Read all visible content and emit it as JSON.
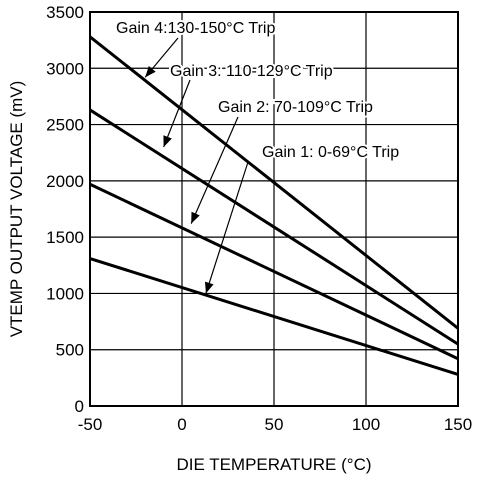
{
  "chart_data": {
    "type": "line",
    "title": "",
    "xlabel": "DIE TEMPERATURE (°C)",
    "ylabel": "VTEMP OUTPUT VOLTAGE (mV)",
    "xlim": [
      -50,
      150
    ],
    "ylim": [
      0,
      3500
    ],
    "x_ticks": [
      -50,
      0,
      50,
      100,
      150
    ],
    "y_ticks": [
      0,
      500,
      1000,
      1500,
      2000,
      2500,
      3000,
      3500
    ],
    "grid": true,
    "series": [
      {
        "name": "Gain 1: 0-69°C Trip",
        "x": [
          -50,
          150
        ],
        "y": [
          1310,
          280
        ]
      },
      {
        "name": "Gain 2: 70-109°C Trip",
        "x": [
          -50,
          150
        ],
        "y": [
          1970,
          420
        ]
      },
      {
        "name": "Gain 3: 110-129°C Trip",
        "x": [
          -50,
          150
        ],
        "y": [
          2630,
          550
        ]
      },
      {
        "name": "Gain 4:130-150°C Trip",
        "x": [
          -50,
          150
        ],
        "y": [
          3280,
          690
        ]
      }
    ],
    "annotations": [
      {
        "series": 0,
        "text": "Gain 1: 0-69°C Trip",
        "point": [
          13,
          1000
        ]
      },
      {
        "series": 1,
        "text": "Gain 2: 70-109°C Trip",
        "point": [
          5,
          1620
        ]
      },
      {
        "series": 2,
        "text": "Gain 3: 110-129°C Trip",
        "point": [
          -10,
          2300
        ]
      },
      {
        "series": 3,
        "text": "Gain 4:130-150°C Trip",
        "point": [
          -20,
          2920
        ]
      }
    ]
  }
}
